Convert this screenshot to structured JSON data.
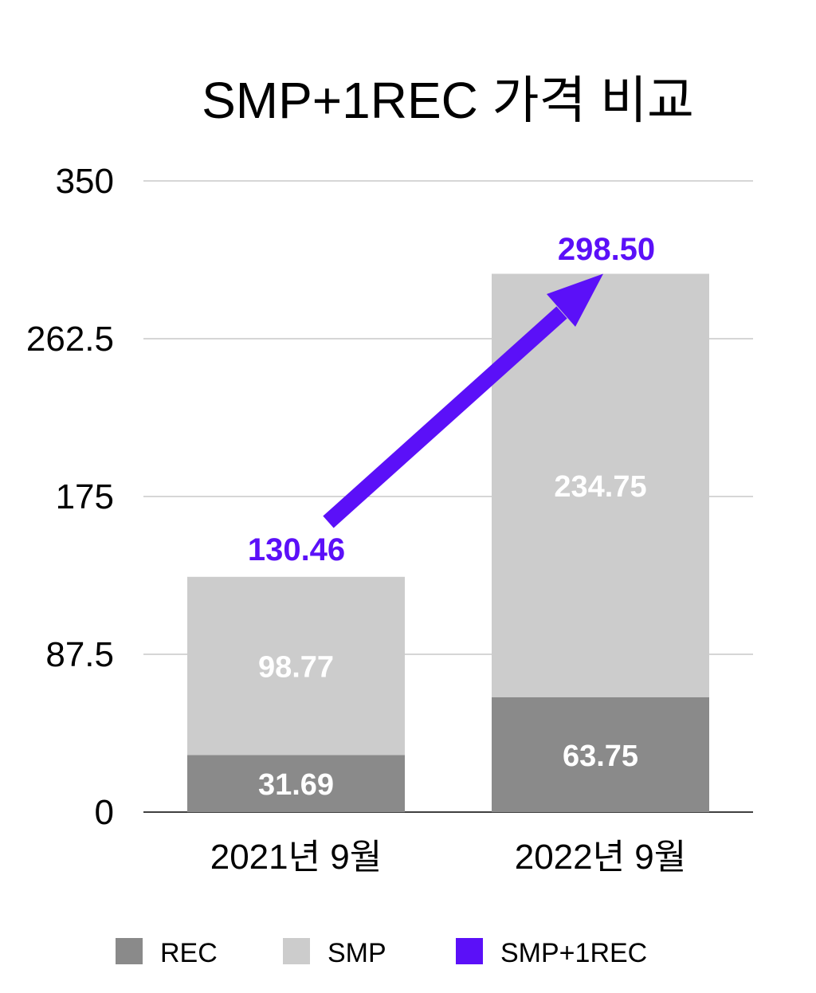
{
  "chart_data": {
    "type": "bar",
    "stacked": true,
    "title": "SMP+1REC 가격 비교",
    "categories": [
      "2021년 9월",
      "2022년 9월"
    ],
    "series": [
      {
        "name": "REC",
        "values": [
          31.69,
          63.75
        ],
        "color": "#8a8a8a"
      },
      {
        "name": "SMP",
        "values": [
          98.77,
          234.75
        ],
        "color": "#cccccc"
      }
    ],
    "totals": {
      "name": "SMP+1REC",
      "values": [
        130.46,
        298.5
      ],
      "labels": [
        "130.46",
        "298.50"
      ],
      "color": "#5b10f8"
    },
    "value_labels": {
      "REC": [
        "31.69",
        "63.75"
      ],
      "SMP": [
        "98.77",
        "234.75"
      ]
    },
    "ylim": [
      0,
      350
    ],
    "yticks": [
      0,
      87.5,
      175,
      262.5,
      350
    ],
    "ytick_labels": [
      "0",
      "87.5",
      "175",
      "262.5",
      "350"
    ],
    "xlabel": "",
    "ylabel": "",
    "grid": true,
    "legend": {
      "placement": "bottom",
      "entries": [
        "REC",
        "SMP",
        "SMP+1REC"
      ]
    },
    "annotation": "arrow from 2021 total to 2022 total"
  }
}
